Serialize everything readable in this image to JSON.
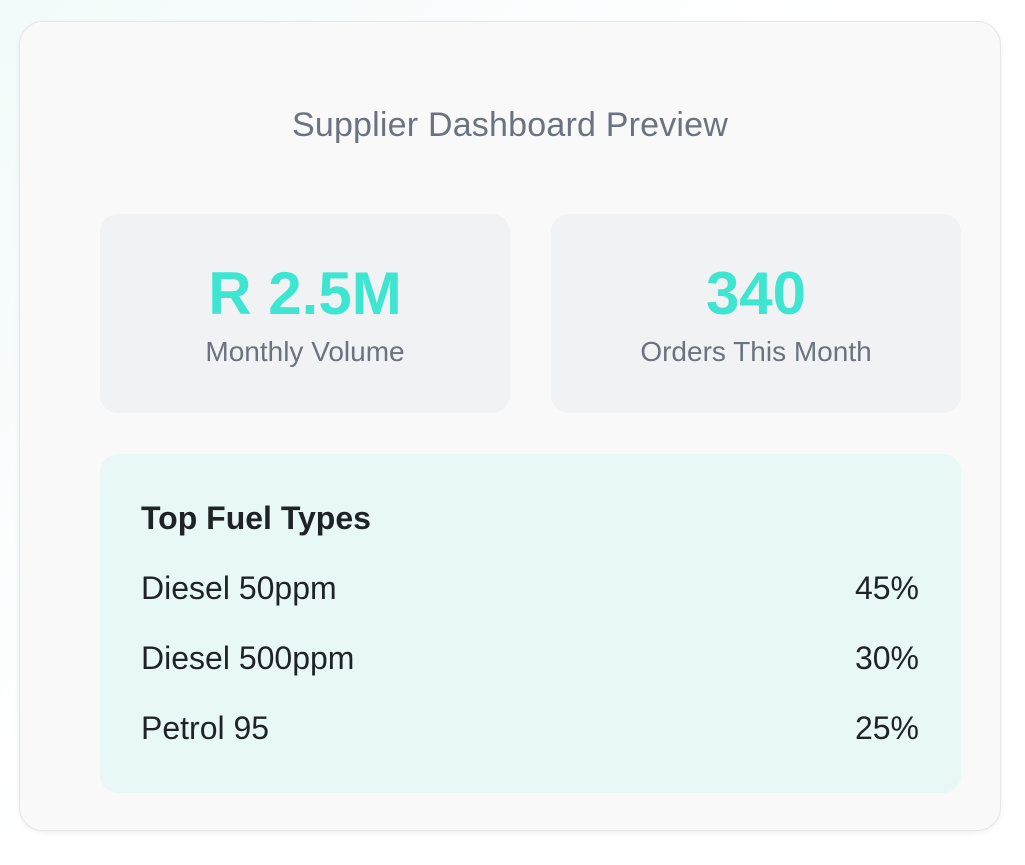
{
  "card": {
    "title": "Supplier Dashboard Preview"
  },
  "stats": [
    {
      "value": "R 2.5M",
      "label": "Monthly Volume"
    },
    {
      "value": "340",
      "label": "Orders This Month"
    }
  ],
  "top_fuel": {
    "heading": "Top Fuel Types",
    "items": [
      {
        "name": "Diesel 50ppm",
        "percent": "45%"
      },
      {
        "name": "Diesel 500ppm",
        "percent": "30%"
      },
      {
        "name": "Petrol 95",
        "percent": "25%"
      }
    ]
  },
  "colors": {
    "accent": "#3ee6d2",
    "muted_text": "#6b7280",
    "panel_bg": "#e7f8f6",
    "stat_bg": "#f1f2f4"
  }
}
